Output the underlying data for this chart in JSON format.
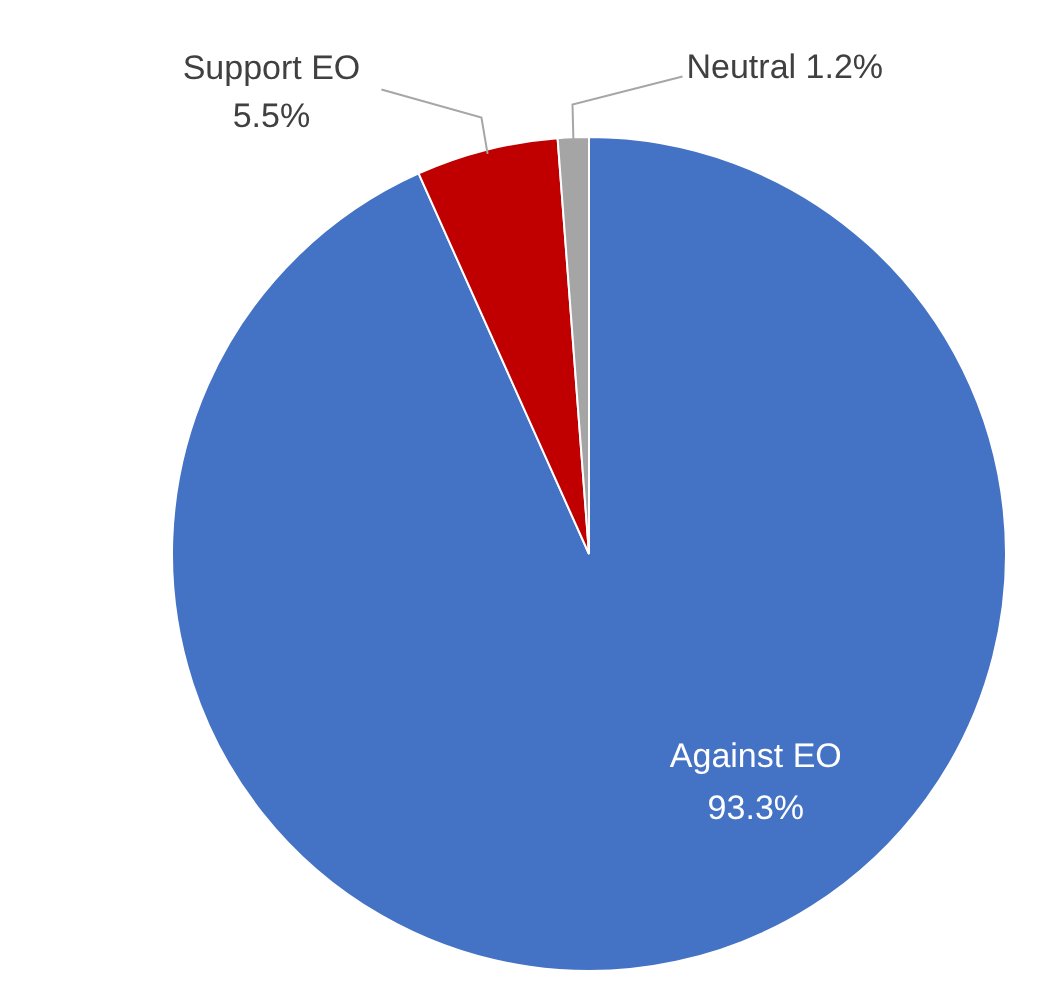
{
  "chart_data": {
    "type": "pie",
    "categories": [
      "Against EO",
      "Support EO",
      "Neutral"
    ],
    "values": [
      93.3,
      5.5,
      1.2
    ],
    "colors": [
      "#4472c4",
      "#c00000",
      "#a5a5a5"
    ],
    "value_labels": [
      "93.3%",
      "5.5%",
      "1.2%"
    ],
    "legend": false
  }
}
